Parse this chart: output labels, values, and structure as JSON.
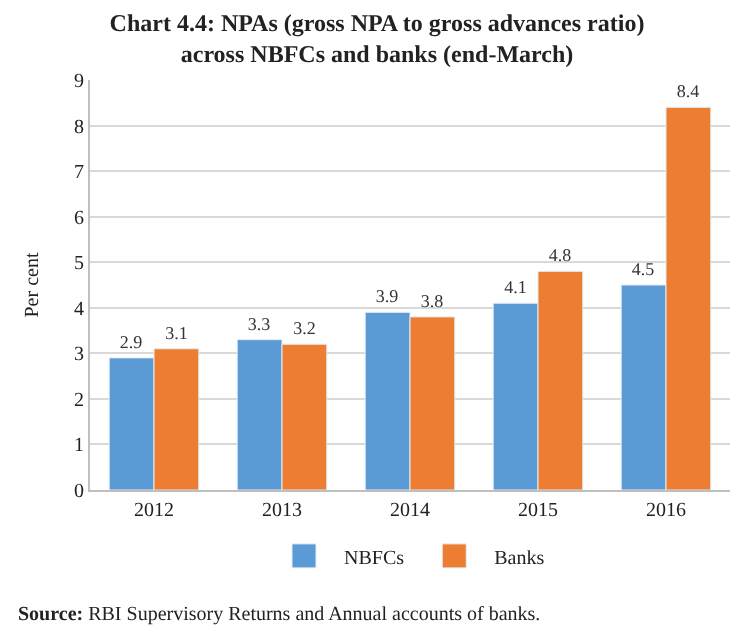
{
  "chart_data": {
    "type": "bar",
    "title": "Chart 4.4: NPAs (gross NPA to gross advances ratio)\nacross NBFCs and banks (end-March)",
    "ylabel": "Per cent",
    "categories": [
      "2012",
      "2013",
      "2014",
      "2015",
      "2016"
    ],
    "series": [
      {
        "name": "NBFCs",
        "color": "#5b9bd5",
        "values": [
          2.9,
          3.3,
          3.9,
          4.1,
          4.5
        ]
      },
      {
        "name": "Banks",
        "color": "#ed7d31",
        "values": [
          3.1,
          3.2,
          3.8,
          4.8,
          8.4
        ]
      }
    ],
    "ylim": [
      0,
      9
    ],
    "yticks": [
      0,
      1,
      2,
      3,
      4,
      5,
      6,
      7,
      8,
      9
    ],
    "grid": "y",
    "legend": "bottom",
    "data_labels": true,
    "annotations": [
      "Source: RBI Supervisory Returns and Annual accounts of banks."
    ]
  }
}
